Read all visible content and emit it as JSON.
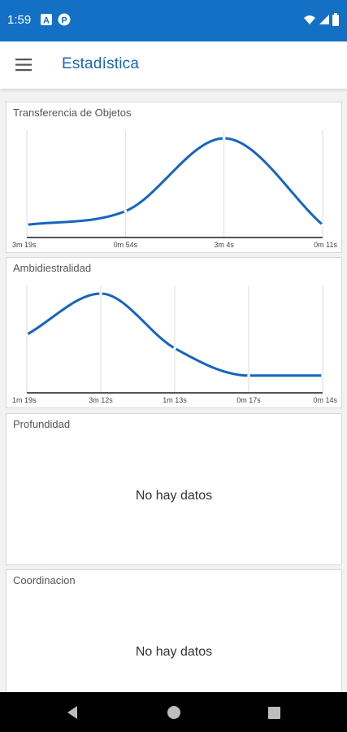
{
  "status_bar": {
    "time": "1:59",
    "bg_color": "#1470c4",
    "left_icons": [
      "notification-a-icon",
      "notification-p-icon"
    ],
    "right_icons": [
      "wifi-icon",
      "signal-icon",
      "battery-icon"
    ]
  },
  "app_bar": {
    "title": "Estadística",
    "menu_icon": "hamburger-menu-icon",
    "title_color": "#1766b8"
  },
  "cards": {
    "transferencia": {
      "title": "Transferencia de Objetos"
    },
    "ambidiestralidad": {
      "title": "Ambidiestralidad"
    },
    "profundidad": {
      "title": "Profundidad",
      "empty_text": "No hay datos"
    },
    "coordinacion": {
      "title": "Coordinacion",
      "empty_text": "No hay datos"
    }
  },
  "chart_data": [
    {
      "type": "line",
      "title": "Transferencia de Objetos",
      "categories": [
        "3m 19s",
        "0m 54s",
        "3m 4s",
        "0m 11s"
      ],
      "values": [
        5,
        20,
        100,
        5
      ],
      "xlabel": "",
      "ylabel": "",
      "grid": true,
      "line_color": "#1565c0"
    },
    {
      "type": "line",
      "title": "Ambidiestralidad",
      "categories": [
        "1m 19s",
        "3m 12s",
        "1m 13s",
        "0m 17s",
        "0m 14s"
      ],
      "values": [
        55,
        100,
        40,
        10,
        10
      ],
      "xlabel": "",
      "ylabel": "",
      "grid": true,
      "line_color": "#1565c0"
    }
  ],
  "nav_bar": {
    "back_icon": "back-triangle-icon",
    "home_icon": "home-circle-icon",
    "recents_icon": "recents-square-icon"
  }
}
